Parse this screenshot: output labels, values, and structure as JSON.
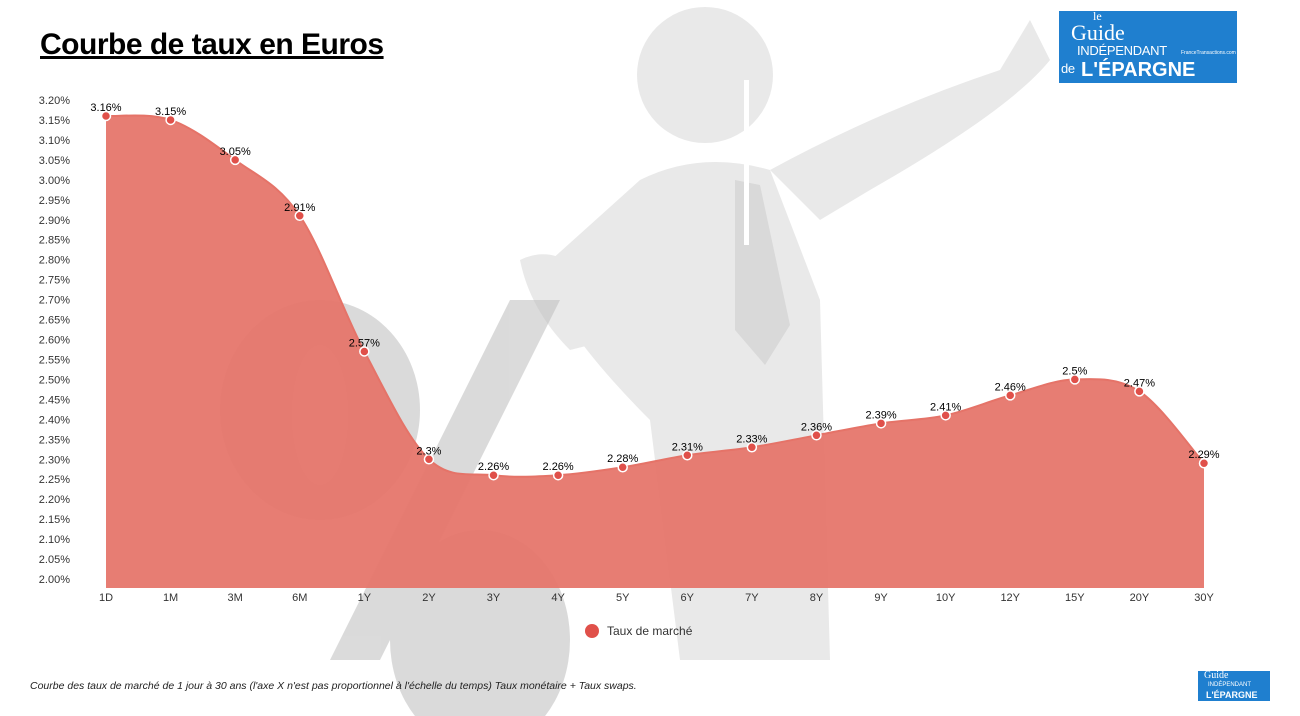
{
  "title": "Courbe de taux en Euros",
  "logo": {
    "line1": "le",
    "line2": "Guide",
    "line3": "INDÉPENDANT",
    "line4_prefix": "de",
    "line4": "L'ÉPARGNE",
    "site": "FranceTransactions.com"
  },
  "caption": "Courbe des taux de marché de 1 jour à 30 ans (l'axe X n'est pas proportionnel à l'échelle du temps) Taux monétaire + Taux swaps.",
  "colors": {
    "series": "#e57368",
    "marker": "#e0504a",
    "watermark": "#d8d8d8"
  },
  "chart_data": {
    "type": "area",
    "title": "",
    "xlabel": "",
    "ylabel": "",
    "categories": [
      "1D",
      "1M",
      "3M",
      "6M",
      "1Y",
      "2Y",
      "3Y",
      "4Y",
      "5Y",
      "6Y",
      "7Y",
      "8Y",
      "9Y",
      "10Y",
      "12Y",
      "15Y",
      "20Y",
      "30Y"
    ],
    "series": [
      {
        "name": "Taux de marché",
        "values": [
          3.16,
          3.15,
          3.05,
          2.91,
          2.57,
          2.3,
          2.26,
          2.26,
          2.28,
          2.31,
          2.33,
          2.36,
          2.39,
          2.41,
          2.46,
          2.5,
          2.47,
          2.29
        ],
        "labels": [
          "3.16%",
          "3.15%",
          "3.05%",
          "2.91%",
          "2.57%",
          "2.3%",
          "2.26%",
          "2.26%",
          "2.28%",
          "2.31%",
          "2.33%",
          "2.36%",
          "2.39%",
          "2.41%",
          "2.46%",
          "2.5%",
          "2.47%",
          "2.29%"
        ]
      }
    ],
    "ylim": [
      2.0,
      3.2
    ],
    "yticks": [
      "2.00%",
      "2.05%",
      "2.10%",
      "2.15%",
      "2.20%",
      "2.25%",
      "2.30%",
      "2.35%",
      "2.40%",
      "2.45%",
      "2.50%",
      "2.55%",
      "2.60%",
      "2.65%",
      "2.70%",
      "2.75%",
      "2.80%",
      "2.85%",
      "2.90%",
      "2.95%",
      "3.00%",
      "3.05%",
      "3.10%",
      "3.15%",
      "3.20%"
    ],
    "grid": false,
    "legend": "bottom",
    "smooth": true
  }
}
